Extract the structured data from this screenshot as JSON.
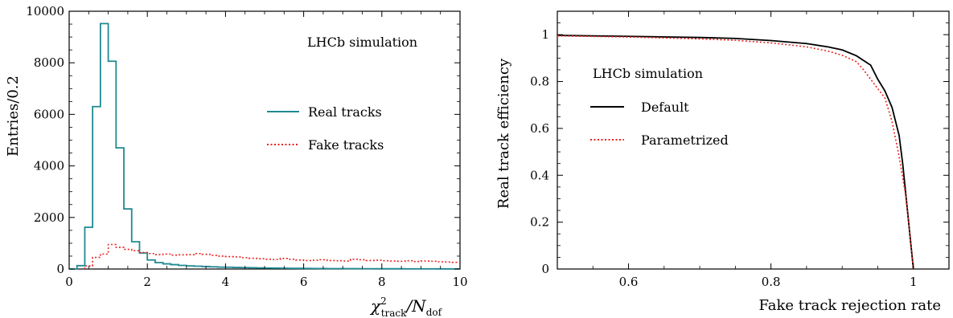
{
  "chart_data": [
    {
      "type": "histogram",
      "annotation": "LHCb simulation",
      "xlabel": {
        "main": "χ",
        "sup": "2",
        "sub": "track",
        "rest": "/N",
        "sub2": "dof"
      },
      "ylabel": "Entries/0.2",
      "xlim": [
        0,
        10
      ],
      "ylim": [
        0,
        10000
      ],
      "xticks": [
        0,
        2,
        4,
        6,
        8,
        10
      ],
      "yticks": [
        0,
        2000,
        4000,
        6000,
        8000,
        10000
      ],
      "bin_width": 0.2,
      "legend_position": "center-right",
      "series": [
        {
          "name": "Real tracks",
          "color": "#1f8a92",
          "style": "solid",
          "bin_start": 0.0,
          "values": [
            0,
            130,
            1620,
            6300,
            9520,
            8060,
            4700,
            2330,
            1060,
            620,
            350,
            250,
            200,
            170,
            140,
            120,
            110,
            95,
            85,
            75,
            70,
            60,
            55,
            48,
            42,
            38,
            34,
            30,
            27,
            25,
            22,
            20,
            18,
            16,
            15,
            14,
            13,
            12,
            11,
            10,
            10,
            9,
            9,
            8,
            8,
            7,
            7,
            6,
            6,
            5
          ]
        },
        {
          "name": "Fake tracks",
          "color": "#e8231f",
          "style": "dotted",
          "bin_start": 0.4,
          "values": [
            120,
            450,
            580,
            950,
            840,
            760,
            710,
            640,
            600,
            560,
            580,
            540,
            550,
            560,
            600,
            570,
            530,
            500,
            480,
            470,
            440,
            420,
            400,
            380,
            370,
            410,
            380,
            350,
            330,
            340,
            360,
            330,
            320,
            310,
            380,
            360,
            330,
            340,
            320,
            310,
            300,
            320,
            290,
            310,
            300,
            280,
            270,
            260
          ]
        }
      ]
    },
    {
      "type": "line",
      "annotation": "LHCb simulation",
      "xlabel": "Fake track rejection rate",
      "ylabel": "Real track efficiency",
      "xlim": [
        0.5,
        1.05
      ],
      "ylim": [
        0,
        1.1
      ],
      "xticks": [
        0.6,
        0.8,
        1
      ],
      "yticks": [
        0,
        0.2,
        0.4,
        0.6,
        0.8,
        1
      ],
      "legend_position": "upper-left",
      "series": [
        {
          "name": "Default",
          "color": "#000000",
          "style": "solid",
          "x": [
            0.5,
            0.6,
            0.7,
            0.75,
            0.8,
            0.85,
            0.88,
            0.9,
            0.92,
            0.94,
            0.95,
            0.96,
            0.97,
            0.98,
            0.985,
            0.99,
            0.995,
            1.0
          ],
          "y": [
            0.997,
            0.993,
            0.988,
            0.984,
            0.975,
            0.962,
            0.948,
            0.935,
            0.91,
            0.87,
            0.81,
            0.76,
            0.69,
            0.57,
            0.45,
            0.3,
            0.15,
            0.0
          ]
        },
        {
          "name": "Parametrized",
          "color": "#e8231f",
          "style": "dotted",
          "x": [
            0.5,
            0.6,
            0.7,
            0.75,
            0.8,
            0.85,
            0.88,
            0.9,
            0.92,
            0.93,
            0.94,
            0.95,
            0.96,
            0.97,
            0.98,
            0.99,
            0.995,
            1.0
          ],
          "y": [
            0.995,
            0.99,
            0.982,
            0.976,
            0.965,
            0.948,
            0.93,
            0.912,
            0.885,
            0.85,
            0.81,
            0.77,
            0.73,
            0.63,
            0.48,
            0.3,
            0.15,
            0.0
          ]
        }
      ]
    }
  ]
}
